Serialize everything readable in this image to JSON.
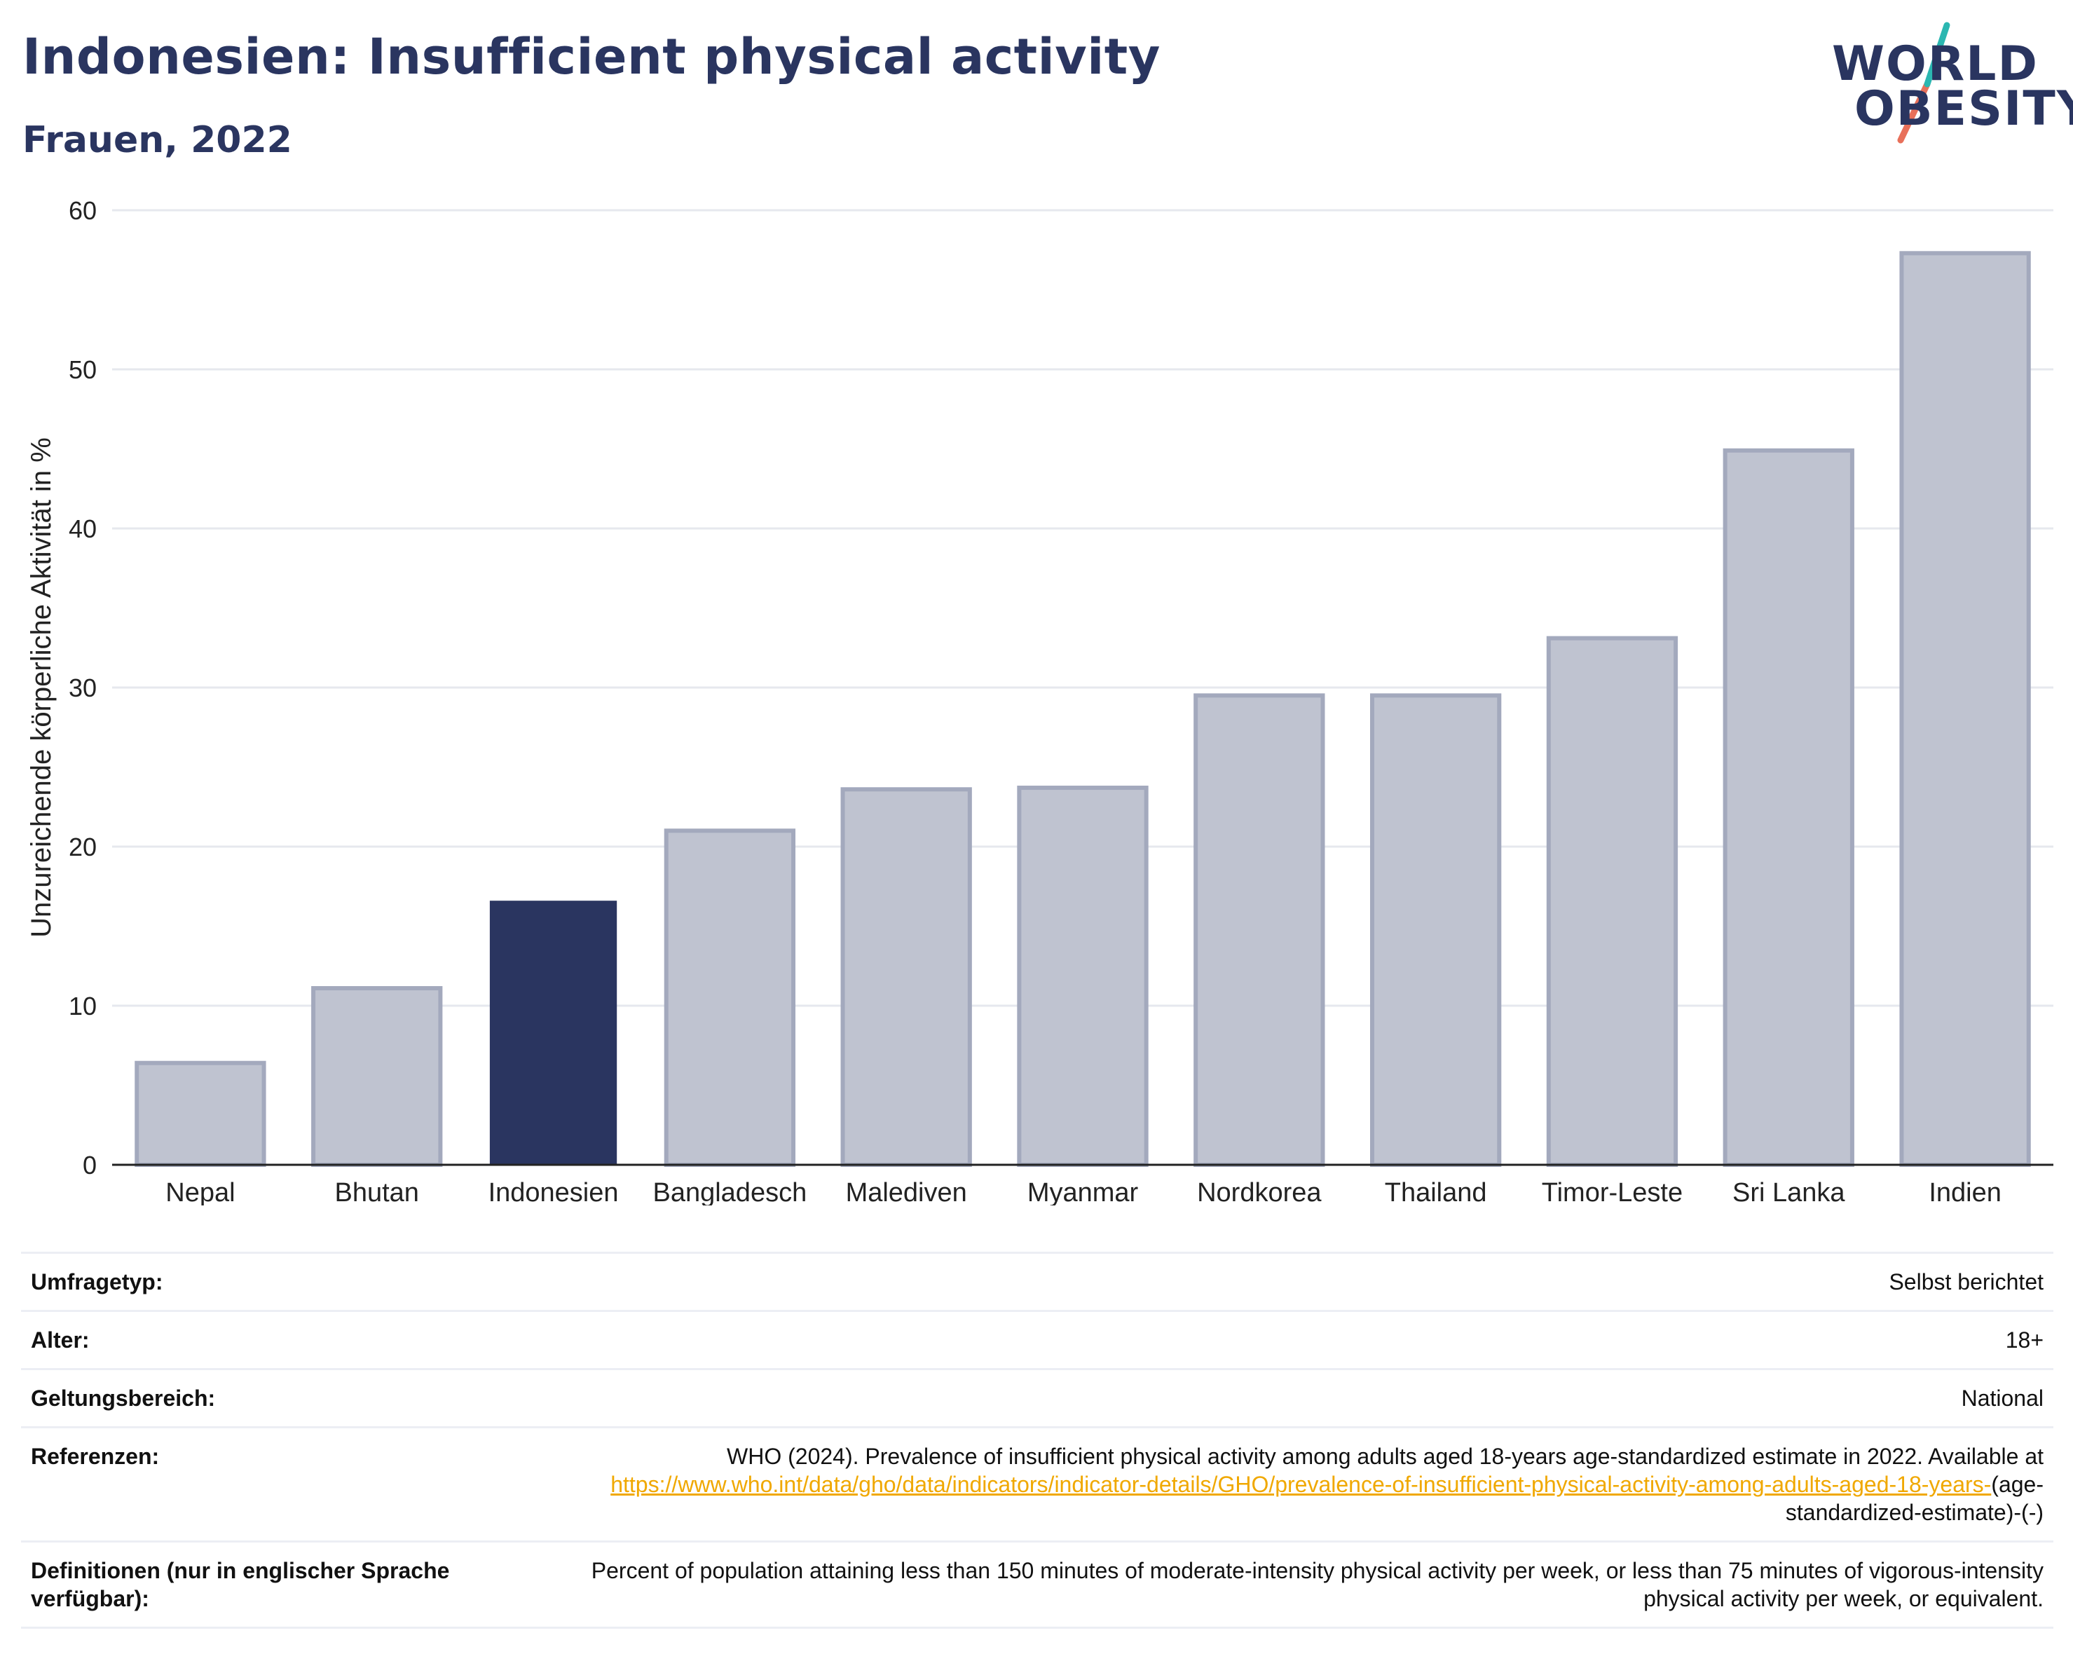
{
  "header": {
    "title": "Indonesien: Insufficient physical activity",
    "subtitle": "Frauen, 2022"
  },
  "logo": {
    "line1": "WORLD",
    "line2": "OBESITY"
  },
  "chart_data": {
    "type": "bar",
    "categories": [
      "Nepal",
      "Bhutan",
      "Indonesien",
      "Bangladesch",
      "Malediven",
      "Myanmar",
      "Nordkorea",
      "Thailand",
      "Timor-Leste",
      "Sri Lanka",
      "Indien"
    ],
    "values": [
      6.4,
      11.1,
      16.6,
      21.0,
      23.6,
      23.7,
      29.5,
      29.5,
      33.1,
      44.9,
      57.3
    ],
    "highlight": "Indonesien",
    "ylabel": "Unzureichende körperliche Aktivität in %",
    "ylim": [
      0,
      60
    ],
    "yticks": [
      0,
      10,
      20,
      30,
      40,
      50,
      60
    ],
    "grid": true,
    "colors": {
      "highlight": "#2a3560",
      "other_fill": "#bfc3d0",
      "other_stroke": "#a3a9bd",
      "grid": "#e6e8ee"
    }
  },
  "info": {
    "rows": [
      {
        "label": "Umfragetyp:",
        "value": "Selbst berichtet"
      },
      {
        "label": "Alter:",
        "value": "18+"
      },
      {
        "label": "Geltungsbereich:",
        "value": "National"
      }
    ],
    "references": {
      "label": "Referenzen:",
      "text": "WHO (2024). Prevalence of insufficient physical activity among adults aged 18-years age-standardized estimate in 2022. Available at",
      "link": "https://www.who.int/data/gho/data/indicators/indicator-details/GHO/prevalence-of-insufficient-physical-activity-among-adults-aged-18-years-",
      "suffix": "(age-standardized-estimate)-(-)"
    },
    "definitions": {
      "label": "Definitionen (nur in englischer Sprache verfügbar):",
      "value": "Percent of population attaining less than 150 minutes of moderate-intensity physical activity per week, or less than 75 minutes of vigorous-intensity physical activity per week, or equivalent."
    }
  }
}
